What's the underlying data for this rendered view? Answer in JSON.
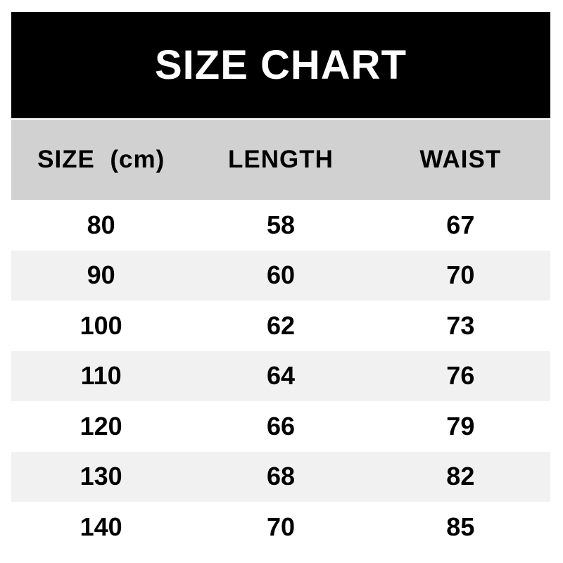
{
  "banner": {
    "title": "SIZE CHART",
    "bg_color": "#000000",
    "text_color": "#ffffff"
  },
  "colors": {
    "header_bg": "#d1d1d1",
    "row_alt_bg": "#f1f1f1",
    "row_bg": "#ffffff",
    "cell_text": "#000000"
  },
  "chart_data": {
    "type": "table",
    "title": "SIZE CHART",
    "columns": [
      "SIZE  (cm)",
      "LENGTH",
      "WAIST"
    ],
    "rows": [
      [
        "80",
        "58",
        "67"
      ],
      [
        "90",
        "60",
        "70"
      ],
      [
        "100",
        "62",
        "73"
      ],
      [
        "110",
        "64",
        "76"
      ],
      [
        "120",
        "66",
        "79"
      ],
      [
        "130",
        "68",
        "82"
      ],
      [
        "140",
        "70",
        "85"
      ]
    ],
    "layout": {
      "header_style": "black banner above gray column header row",
      "row_striping": "white / light gray alternating starting with white",
      "text_alignment": "center"
    }
  }
}
